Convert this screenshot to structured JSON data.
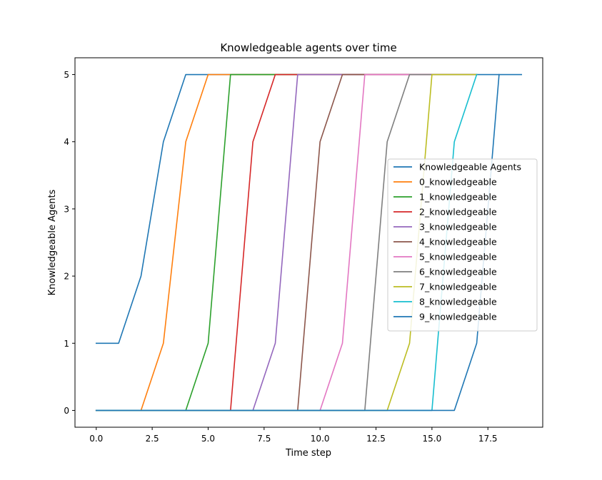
{
  "chart_data": {
    "type": "line",
    "title": "Knowledgeable agents over time",
    "xlabel": "Time step",
    "ylabel": "Knowledgeable Agents",
    "xlim": [
      -0.95,
      19.95
    ],
    "ylim": [
      -0.25,
      5.25
    ],
    "xticks": [
      0.0,
      2.5,
      5.0,
      7.5,
      10.0,
      12.5,
      15.0,
      17.5
    ],
    "xtick_labels": [
      "0.0",
      "2.5",
      "5.0",
      "7.5",
      "10.0",
      "12.5",
      "15.0",
      "17.5"
    ],
    "yticks": [
      0,
      1,
      2,
      3,
      4,
      5
    ],
    "ytick_labels": [
      "0",
      "1",
      "2",
      "3",
      "4",
      "5"
    ],
    "grid": false,
    "legend_position": "center-right",
    "series": [
      {
        "name": "Knowledgeable Agents",
        "color": "#1f77b4",
        "x": [
          0,
          1,
          2,
          3,
          4,
          5,
          6,
          7,
          8,
          9,
          10,
          11,
          12,
          13,
          14,
          15,
          16,
          17,
          18,
          19
        ],
        "y": [
          1,
          1,
          2,
          4,
          5,
          5,
          5,
          5,
          5,
          5,
          5,
          5,
          5,
          5,
          5,
          5,
          5,
          5,
          5,
          5
        ]
      },
      {
        "name": "0_knowledgeable",
        "color": "#ff7f0e",
        "x": [
          0,
          1,
          2,
          3,
          4,
          5,
          6,
          7,
          8,
          9,
          10,
          11,
          12,
          13,
          14,
          15,
          16,
          17
        ],
        "y": [
          0,
          0,
          0,
          1,
          4,
          5,
          5,
          5,
          5,
          5,
          5,
          5,
          5,
          5,
          5,
          5,
          5,
          5
        ]
      },
      {
        "name": "1_knowledgeable",
        "color": "#2ca02c",
        "x": [
          0,
          1,
          2,
          3,
          4,
          5,
          6,
          7,
          8,
          9,
          10,
          11,
          12,
          13,
          14,
          15,
          16,
          17
        ],
        "y": [
          0,
          0,
          0,
          0,
          0,
          1,
          5,
          5,
          5,
          5,
          5,
          5,
          5,
          5,
          5,
          5,
          5,
          5
        ]
      },
      {
        "name": "2_knowledgeable",
        "color": "#d62728",
        "x": [
          0,
          1,
          2,
          3,
          4,
          5,
          6,
          7,
          8,
          9,
          10,
          11,
          12,
          13,
          14,
          15,
          16,
          17
        ],
        "y": [
          0,
          0,
          0,
          0,
          0,
          0,
          0,
          4,
          5,
          5,
          5,
          5,
          5,
          5,
          5,
          5,
          5,
          5
        ]
      },
      {
        "name": "3_knowledgeable",
        "color": "#9467bd",
        "x": [
          0,
          1,
          2,
          3,
          4,
          5,
          6,
          7,
          8,
          9,
          10,
          11,
          12,
          13,
          14,
          15,
          16,
          17
        ],
        "y": [
          0,
          0,
          0,
          0,
          0,
          0,
          0,
          0,
          1,
          5,
          5,
          5,
          5,
          5,
          5,
          5,
          5,
          5
        ]
      },
      {
        "name": "4_knowledgeable",
        "color": "#8c564b",
        "x": [
          0,
          1,
          2,
          3,
          4,
          5,
          6,
          7,
          8,
          9,
          10,
          11,
          12,
          13,
          14,
          15,
          16,
          17
        ],
        "y": [
          0,
          0,
          0,
          0,
          0,
          0,
          0,
          0,
          0,
          0,
          4,
          5,
          5,
          5,
          5,
          5,
          5,
          5
        ]
      },
      {
        "name": "5_knowledgeable",
        "color": "#e377c2",
        "x": [
          0,
          1,
          2,
          3,
          4,
          5,
          6,
          7,
          8,
          9,
          10,
          11,
          12,
          13,
          14,
          15,
          16,
          17
        ],
        "y": [
          0,
          0,
          0,
          0,
          0,
          0,
          0,
          0,
          0,
          0,
          0,
          1,
          5,
          5,
          5,
          5,
          5,
          5
        ]
      },
      {
        "name": "6_knowledgeable",
        "color": "#7f7f7f",
        "x": [
          0,
          1,
          2,
          3,
          4,
          5,
          6,
          7,
          8,
          9,
          10,
          11,
          12,
          13,
          14,
          15,
          16,
          17
        ],
        "y": [
          0,
          0,
          0,
          0,
          0,
          0,
          0,
          0,
          0,
          0,
          0,
          0,
          0,
          4,
          5,
          5,
          5,
          5
        ]
      },
      {
        "name": "7_knowledgeable",
        "color": "#bcbd22",
        "x": [
          0,
          1,
          2,
          3,
          4,
          5,
          6,
          7,
          8,
          9,
          10,
          11,
          12,
          13,
          14,
          15,
          16,
          17
        ],
        "y": [
          0,
          0,
          0,
          0,
          0,
          0,
          0,
          0,
          0,
          0,
          0,
          0,
          0,
          0,
          1,
          5,
          5,
          5
        ]
      },
      {
        "name": "8_knowledgeable",
        "color": "#17becf",
        "x": [
          0,
          1,
          2,
          3,
          4,
          5,
          6,
          7,
          8,
          9,
          10,
          11,
          12,
          13,
          14,
          15,
          16,
          17
        ],
        "y": [
          0,
          0,
          0,
          0,
          0,
          0,
          0,
          0,
          0,
          0,
          0,
          0,
          0,
          0,
          0,
          0,
          4,
          5
        ]
      },
      {
        "name": "9_knowledgeable",
        "color": "#1f77b4",
        "x": [
          0,
          1,
          2,
          3,
          4,
          5,
          6,
          7,
          8,
          9,
          10,
          11,
          12,
          13,
          14,
          15,
          16,
          17,
          18
        ],
        "y": [
          0,
          0,
          0,
          0,
          0,
          0,
          0,
          0,
          0,
          0,
          0,
          0,
          0,
          0,
          0,
          0,
          0,
          1,
          5
        ]
      }
    ]
  }
}
